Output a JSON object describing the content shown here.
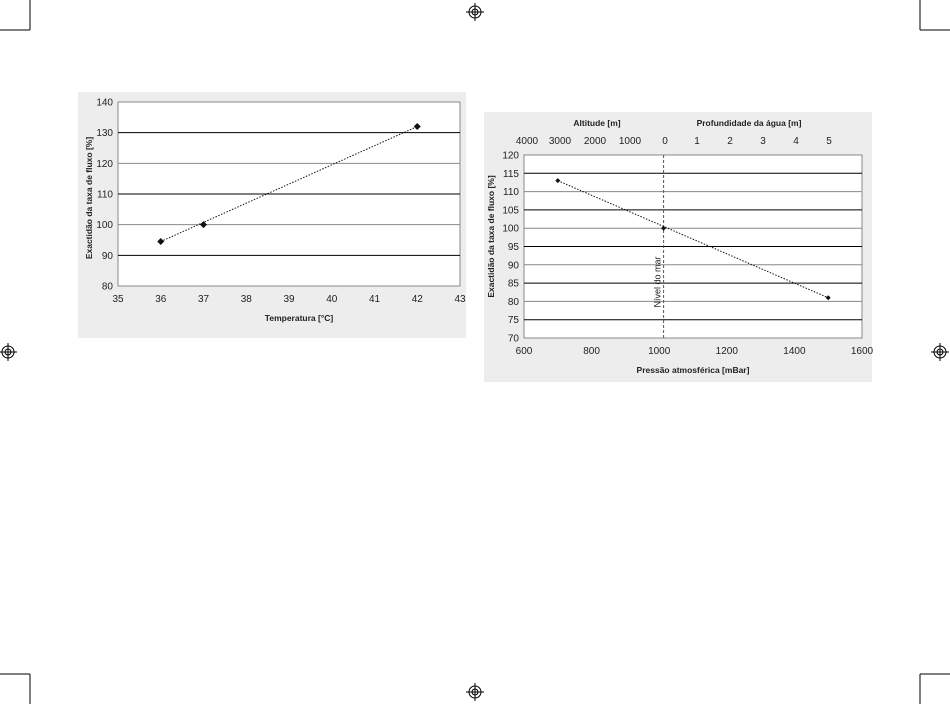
{
  "chart_data": [
    {
      "type": "scatter",
      "title": "",
      "xlabel": "Temperatura [°C]",
      "ylabel": "Exactidão da taxa de fluxo [%]",
      "xlim": [
        35,
        43
      ],
      "ylim": [
        80,
        140
      ],
      "xticks": [
        "35",
        "36",
        "37",
        "38",
        "39",
        "40",
        "41",
        "42",
        "43"
      ],
      "yticks": [
        "80",
        "90",
        "100",
        "110",
        "120",
        "130",
        "140"
      ],
      "grid": true,
      "trendline": "dotted",
      "series": [
        {
          "x": [
            36,
            37,
            42
          ],
          "y": [
            94.5,
            100,
            132
          ]
        }
      ]
    },
    {
      "type": "scatter",
      "title": "",
      "xlabel": "Pressão atmosférica [mBar]",
      "ylabel": "Exactidão da taxa de fluxo [%]",
      "xlim": [
        600,
        1600
      ],
      "ylim": [
        70,
        120
      ],
      "xticks": [
        "600",
        "800",
        "1000",
        "1200",
        "1400",
        "1600"
      ],
      "yticks": [
        "70",
        "75",
        "80",
        "85",
        "90",
        "95",
        "100",
        "105",
        "110",
        "115",
        "120"
      ],
      "grid": true,
      "trendline": "dotted",
      "secondary_axes": {
        "altitude_label": "Altitude [m]",
        "altitude_ticks": [
          "4000",
          "3000",
          "2000",
          "1000",
          "0"
        ],
        "depth_label": "Profundidade da água [m]",
        "depth_ticks": [
          "1",
          "2",
          "3",
          "4",
          "5"
        ]
      },
      "annotation": {
        "text": "Nível do mar",
        "x": 1013
      },
      "series": [
        {
          "x": [
            700,
            1013,
            1500
          ],
          "y": [
            113,
            100,
            81
          ]
        }
      ]
    }
  ]
}
